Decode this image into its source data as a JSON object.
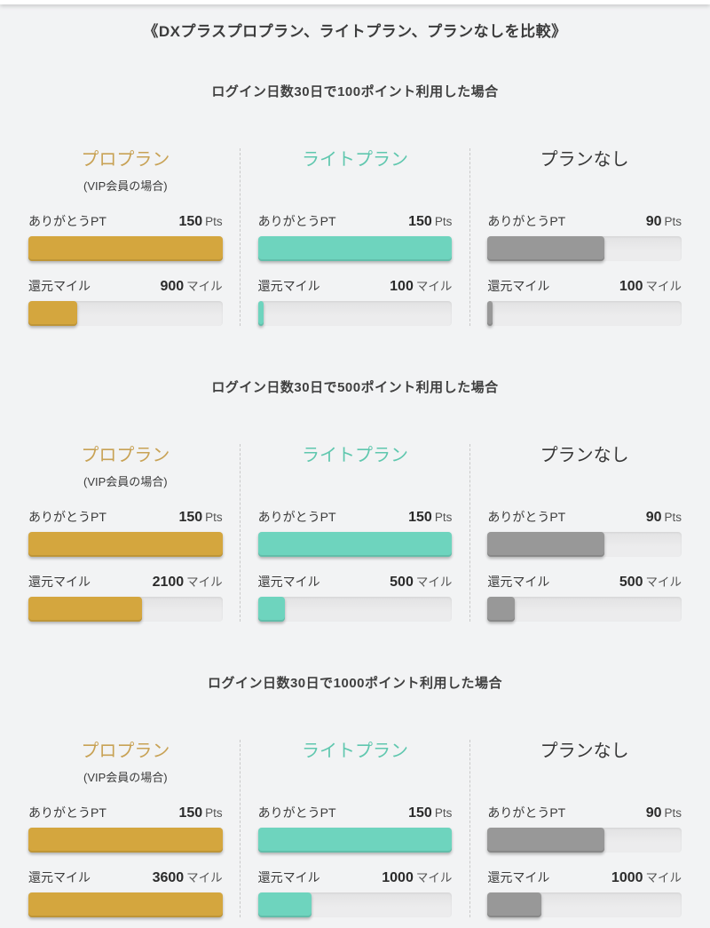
{
  "theme": {
    "bg": "#f2f3f4",
    "gold": "#d4a63e",
    "teal": "#6ed4be",
    "gray": "#989898",
    "title_gold": "#c8a255",
    "title_teal": "#5fc7ae",
    "text": "#3a3a3a"
  },
  "page": {
    "title": "《DXプラスプロプラン、ライトプラン、プランなしを比較》"
  },
  "labels": {
    "points_label": "ありがとうPT",
    "miles_label": "還元マイル",
    "points_unit": "Pts",
    "miles_unit": "マイル"
  },
  "scales": {
    "points_max": 150,
    "miles_max": 3600
  },
  "plans": [
    {
      "name": "プロプラン",
      "subtitle": "(VIP会員の場合)"
    },
    {
      "name": "ライトプラン"
    },
    {
      "name": "プランなし"
    }
  ],
  "sections": [
    {
      "heading": "ログイン日数30日で100ポイント利用した場合",
      "columns": [
        {
          "points": 150,
          "miles": 900
        },
        {
          "points": 150,
          "miles": 100
        },
        {
          "points": 90,
          "miles": 100
        }
      ]
    },
    {
      "heading": "ログイン日数30日で500ポイント利用した場合",
      "columns": [
        {
          "points": 150,
          "miles": 2100
        },
        {
          "points": 150,
          "miles": 500
        },
        {
          "points": 90,
          "miles": 500
        }
      ]
    },
    {
      "heading": "ログイン日数30日で1000ポイント利用した場合",
      "columns": [
        {
          "points": 150,
          "miles": 3600
        },
        {
          "points": 150,
          "miles": 1000
        },
        {
          "points": 90,
          "miles": 1000
        }
      ]
    }
  ],
  "chart_data": [
    {
      "type": "bar",
      "orientation": "horizontal",
      "title": "ログイン日数30日で100ポイント利用した場合",
      "categories": [
        "プロプラン (VIP会員の場合)",
        "ライトプラン",
        "プランなし"
      ],
      "series": [
        {
          "name": "ありがとうPT",
          "unit": "Pts",
          "values": [
            150,
            150,
            90
          ],
          "axis_max": 150
        },
        {
          "name": "還元マイル",
          "unit": "マイル",
          "values": [
            900,
            100,
            100
          ],
          "axis_max": 3600
        }
      ],
      "legend_position": "none",
      "grid": false
    },
    {
      "type": "bar",
      "orientation": "horizontal",
      "title": "ログイン日数30日で500ポイント利用した場合",
      "categories": [
        "プロプラン (VIP会員の場合)",
        "ライトプラン",
        "プランなし"
      ],
      "series": [
        {
          "name": "ありがとうPT",
          "unit": "Pts",
          "values": [
            150,
            150,
            90
          ],
          "axis_max": 150
        },
        {
          "name": "還元マイル",
          "unit": "マイル",
          "values": [
            2100,
            500,
            500
          ],
          "axis_max": 3600
        }
      ],
      "legend_position": "none",
      "grid": false
    },
    {
      "type": "bar",
      "orientation": "horizontal",
      "title": "ログイン日数30日で1000ポイント利用した場合",
      "categories": [
        "プロプラン (VIP会員の場合)",
        "ライトプラン",
        "プランなし"
      ],
      "series": [
        {
          "name": "ありがとうPT",
          "unit": "Pts",
          "values": [
            150,
            150,
            90
          ],
          "axis_max": 150
        },
        {
          "name": "還元マイル",
          "unit": "マイル",
          "values": [
            3600,
            1000,
            1000
          ],
          "axis_max": 3600
        }
      ],
      "legend_position": "none",
      "grid": false
    }
  ]
}
